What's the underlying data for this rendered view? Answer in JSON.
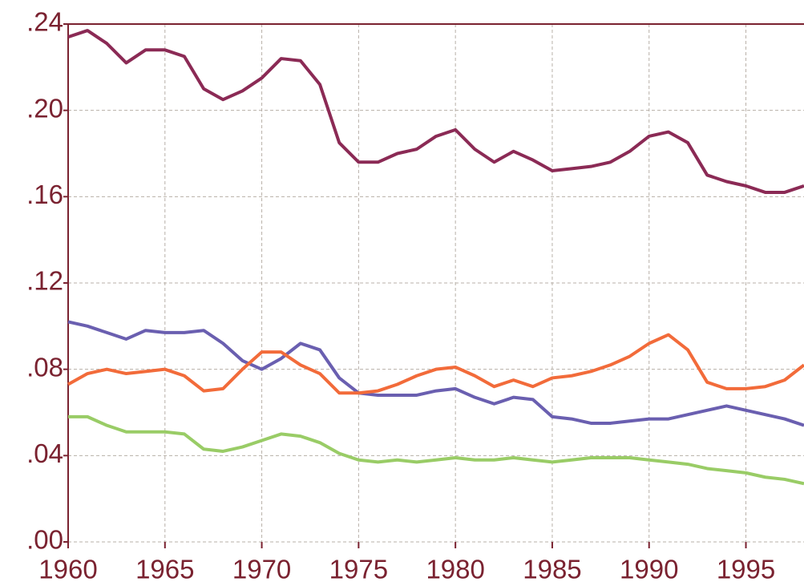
{
  "chart_data": {
    "type": "line",
    "x": [
      1960,
      1961,
      1962,
      1963,
      1964,
      1965,
      1966,
      1967,
      1968,
      1969,
      1970,
      1971,
      1972,
      1973,
      1974,
      1975,
      1976,
      1977,
      1978,
      1979,
      1980,
      1981,
      1982,
      1983,
      1984,
      1985,
      1986,
      1987,
      1988,
      1989,
      1990,
      1991,
      1992,
      1993,
      1994,
      1995,
      1996,
      1997,
      1998
    ],
    "series": [
      {
        "color": "#8b2a55",
        "values": [
          0.234,
          0.237,
          0.231,
          0.222,
          0.228,
          0.228,
          0.225,
          0.21,
          0.205,
          0.209,
          0.215,
          0.224,
          0.223,
          0.212,
          0.185,
          0.176,
          0.176,
          0.18,
          0.182,
          0.188,
          0.191,
          0.182,
          0.176,
          0.181,
          0.177,
          0.172,
          0.173,
          0.174,
          0.176,
          0.181,
          0.188,
          0.19,
          0.185,
          0.17,
          0.167,
          0.165,
          0.162,
          0.162,
          0.165
        ]
      },
      {
        "color": "#6a5fb0",
        "values": [
          0.102,
          0.1,
          0.097,
          0.094,
          0.098,
          0.097,
          0.097,
          0.098,
          0.092,
          0.084,
          0.08,
          0.085,
          0.092,
          0.089,
          0.076,
          0.069,
          0.068,
          0.068,
          0.068,
          0.07,
          0.071,
          0.067,
          0.064,
          0.067,
          0.066,
          0.058,
          0.057,
          0.055,
          0.055,
          0.056,
          0.057,
          0.057,
          0.059,
          0.061,
          0.063,
          0.061,
          0.059,
          0.057,
          0.054
        ]
      },
      {
        "color": "#f26b3a",
        "values": [
          0.073,
          0.078,
          0.08,
          0.078,
          0.079,
          0.08,
          0.077,
          0.07,
          0.071,
          0.08,
          0.088,
          0.088,
          0.082,
          0.078,
          0.069,
          0.069,
          0.07,
          0.073,
          0.077,
          0.08,
          0.081,
          0.077,
          0.072,
          0.075,
          0.072,
          0.076,
          0.077,
          0.079,
          0.082,
          0.086,
          0.092,
          0.096,
          0.089,
          0.074,
          0.071,
          0.071,
          0.072,
          0.075,
          0.082
        ]
      },
      {
        "color": "#99cc66",
        "values": [
          0.058,
          0.058,
          0.054,
          0.051,
          0.051,
          0.051,
          0.05,
          0.043,
          0.042,
          0.044,
          0.047,
          0.05,
          0.049,
          0.046,
          0.041,
          0.038,
          0.037,
          0.038,
          0.037,
          0.038,
          0.039,
          0.038,
          0.038,
          0.039,
          0.038,
          0.037,
          0.038,
          0.039,
          0.039,
          0.039,
          0.038,
          0.037,
          0.036,
          0.034,
          0.033,
          0.032,
          0.03,
          0.029,
          0.027
        ]
      }
    ],
    "xlim": [
      1960,
      1998
    ],
    "xticks": [
      1960,
      1965,
      1970,
      1975,
      1980,
      1985,
      1990,
      1995
    ],
    "ylim": [
      0,
      0.24
    ],
    "yticks": [
      {
        "value": 0,
        "label": ".00"
      },
      {
        "value": 0.04,
        "label": ".04"
      },
      {
        "value": 0.08,
        "label": ".08"
      },
      {
        "value": 0.12,
        "label": ".12"
      },
      {
        "value": 0.16,
        "label": ".16"
      },
      {
        "value": 0.2,
        "label": ".20"
      },
      {
        "value": 0.24,
        "label": ".24"
      }
    ],
    "grid": true
  }
}
